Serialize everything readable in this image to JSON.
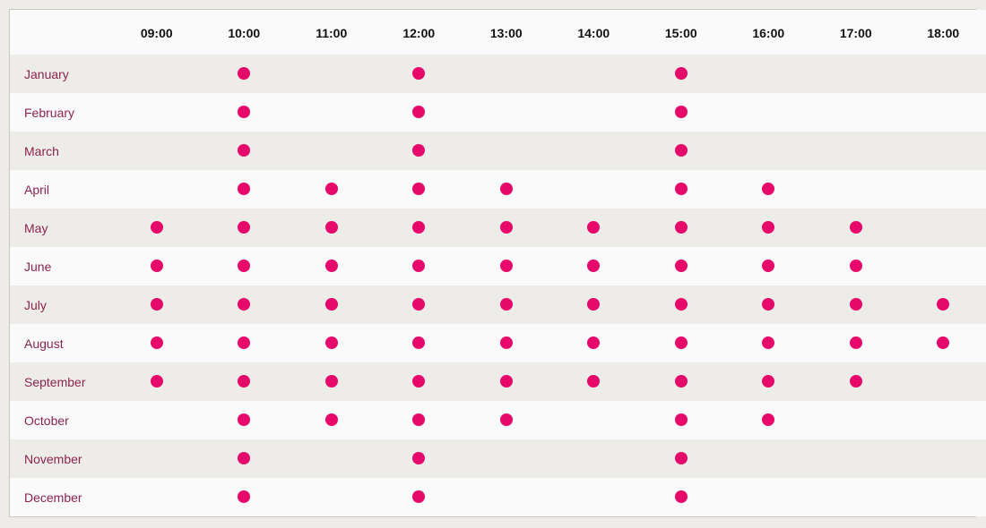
{
  "colors": {
    "dot": "#e6086b",
    "month_text": "#8d2350",
    "row_shaded": "#eeece8",
    "row_plain": "#fafafa"
  },
  "times": [
    "09:00",
    "10:00",
    "11:00",
    "12:00",
    "13:00",
    "14:00",
    "15:00",
    "16:00",
    "17:00",
    "18:00"
  ],
  "rows": [
    {
      "month": "January",
      "slots": [
        0,
        1,
        0,
        1,
        0,
        0,
        1,
        0,
        0,
        0
      ]
    },
    {
      "month": "February",
      "slots": [
        0,
        1,
        0,
        1,
        0,
        0,
        1,
        0,
        0,
        0
      ]
    },
    {
      "month": "March",
      "slots": [
        0,
        1,
        0,
        1,
        0,
        0,
        1,
        0,
        0,
        0
      ]
    },
    {
      "month": "April",
      "slots": [
        0,
        1,
        1,
        1,
        1,
        0,
        1,
        1,
        0,
        0
      ]
    },
    {
      "month": "May",
      "slots": [
        1,
        1,
        1,
        1,
        1,
        1,
        1,
        1,
        1,
        0
      ]
    },
    {
      "month": "June",
      "slots": [
        1,
        1,
        1,
        1,
        1,
        1,
        1,
        1,
        1,
        0
      ]
    },
    {
      "month": "July",
      "slots": [
        1,
        1,
        1,
        1,
        1,
        1,
        1,
        1,
        1,
        1
      ]
    },
    {
      "month": "August",
      "slots": [
        1,
        1,
        1,
        1,
        1,
        1,
        1,
        1,
        1,
        1
      ]
    },
    {
      "month": "September",
      "slots": [
        1,
        1,
        1,
        1,
        1,
        1,
        1,
        1,
        1,
        0
      ]
    },
    {
      "month": "October",
      "slots": [
        0,
        1,
        1,
        1,
        1,
        0,
        1,
        1,
        0,
        0
      ]
    },
    {
      "month": "November",
      "slots": [
        0,
        1,
        0,
        1,
        0,
        0,
        1,
        0,
        0,
        0
      ]
    },
    {
      "month": "December",
      "slots": [
        0,
        1,
        0,
        1,
        0,
        0,
        1,
        0,
        0,
        0
      ]
    }
  ]
}
